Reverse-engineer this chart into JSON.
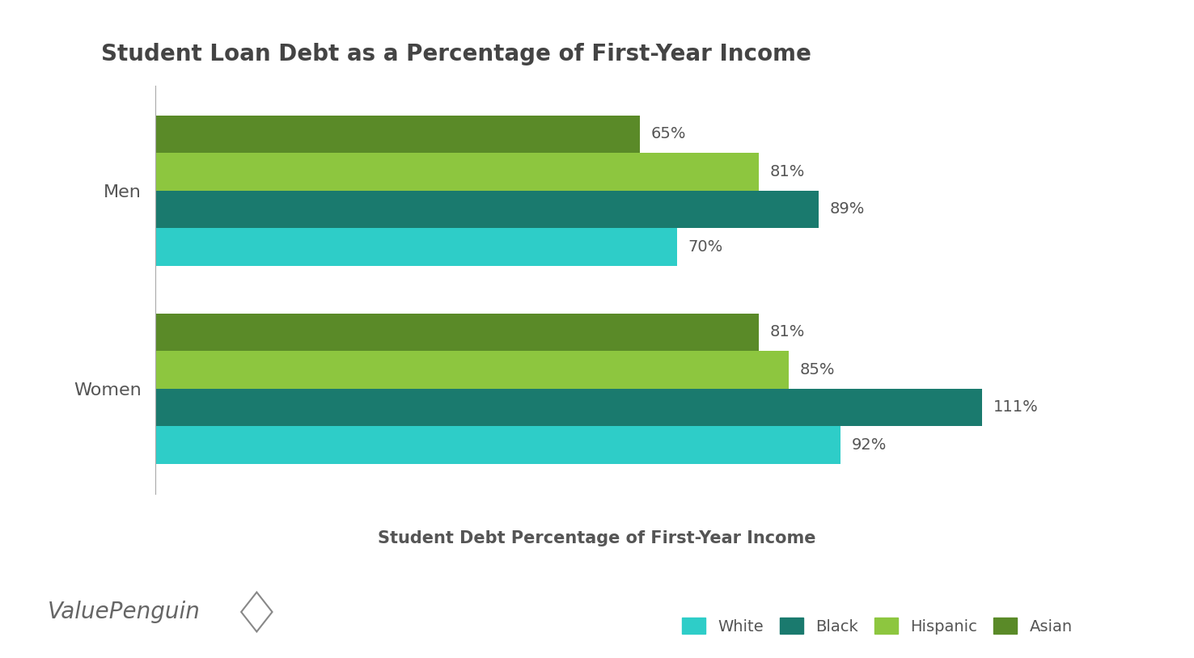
{
  "title": "Student Loan Debt as a Percentage of First-Year Income",
  "xlabel": "Student Debt Percentage of First-Year Income",
  "categories": [
    "Men",
    "Women"
  ],
  "races": [
    "White",
    "Black",
    "Hispanic",
    "Asian"
  ],
  "colors": [
    "#2ecdc8",
    "#1a7a6e",
    "#8dc63f",
    "#5a8a28"
  ],
  "values": {
    "Men": [
      70,
      89,
      81,
      65
    ],
    "Women": [
      92,
      111,
      85,
      81
    ]
  },
  "labels": {
    "Men": [
      "70%",
      "89%",
      "81%",
      "65%"
    ],
    "Women": [
      "92%",
      "111%",
      "85%",
      "81%"
    ]
  },
  "xlim": [
    0,
    125
  ],
  "background_color": "#ffffff",
  "text_color": "#555555",
  "title_color": "#444444",
  "title_fontsize": 20,
  "label_fontsize": 14,
  "tick_fontsize": 16,
  "xlabel_fontsize": 15
}
